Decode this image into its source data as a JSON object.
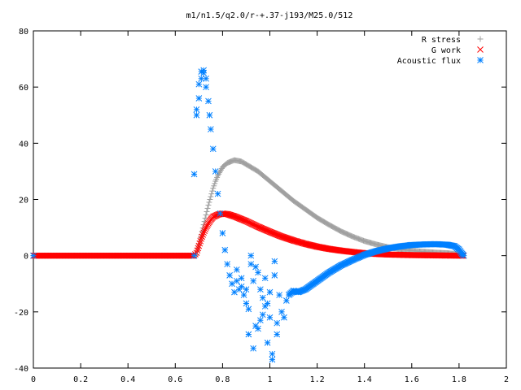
{
  "chart_data": {
    "type": "scatter",
    "title": "m1/n1.5/q2.0/r-+.37-j193/M25.0/512",
    "xlabel": "",
    "ylabel": "",
    "xlim": [
      0,
      2
    ],
    "ylim": [
      -40,
      80
    ],
    "x_ticks": [
      "0",
      "0.2",
      "0.4",
      "0.6",
      "0.8",
      "1",
      "1.2",
      "1.4",
      "1.6",
      "1.8",
      "2"
    ],
    "y_ticks": [
      "-40",
      "-20",
      "0",
      "20",
      "40",
      "60",
      "80"
    ],
    "grid": false,
    "legend_position": "top-right",
    "series": [
      {
        "name": "R stress",
        "marker": "+",
        "color": "#a0a0a0",
        "points": [
          [
            0.0,
            0
          ],
          [
            0.68,
            0
          ],
          [
            0.69,
            0.3
          ],
          [
            0.7,
            4
          ],
          [
            0.71,
            7.5
          ],
          [
            0.72,
            11
          ],
          [
            0.73,
            14.5
          ],
          [
            0.74,
            18
          ],
          [
            0.75,
            21
          ],
          [
            0.76,
            24
          ],
          [
            0.77,
            26.5
          ],
          [
            0.78,
            28.5
          ],
          [
            0.79,
            30
          ],
          [
            0.8,
            31.5
          ],
          [
            0.82,
            33
          ],
          [
            0.85,
            34
          ],
          [
            0.88,
            33.5
          ],
          [
            0.9,
            32.5
          ],
          [
            0.95,
            30
          ],
          [
            1.0,
            26.5
          ],
          [
            1.05,
            23
          ],
          [
            1.1,
            19.5
          ],
          [
            1.15,
            16.5
          ],
          [
            1.2,
            13.5
          ],
          [
            1.25,
            11
          ],
          [
            1.3,
            8.7
          ],
          [
            1.35,
            6.8
          ],
          [
            1.4,
            5.2
          ],
          [
            1.45,
            4
          ],
          [
            1.5,
            3
          ],
          [
            1.55,
            2.3
          ],
          [
            1.6,
            1.8
          ],
          [
            1.65,
            1.4
          ],
          [
            1.7,
            1.1
          ],
          [
            1.75,
            0.9
          ],
          [
            1.8,
            0.5
          ],
          [
            1.82,
            0
          ]
        ]
      },
      {
        "name": "G work",
        "marker": "x",
        "color": "#ff0000",
        "points": [
          [
            0.0,
            0
          ],
          [
            0.68,
            0
          ],
          [
            0.69,
            1
          ],
          [
            0.7,
            3.5
          ],
          [
            0.71,
            6
          ],
          [
            0.72,
            8.2
          ],
          [
            0.73,
            10
          ],
          [
            0.74,
            11.5
          ],
          [
            0.75,
            12.8
          ],
          [
            0.76,
            13.8
          ],
          [
            0.78,
            14.6
          ],
          [
            0.8,
            15
          ],
          [
            0.82,
            14.8
          ],
          [
            0.85,
            14
          ],
          [
            0.9,
            12.3
          ],
          [
            0.95,
            10.3
          ],
          [
            1.0,
            8.5
          ],
          [
            1.05,
            6.8
          ],
          [
            1.1,
            5.4
          ],
          [
            1.15,
            4.2
          ],
          [
            1.2,
            3.2
          ],
          [
            1.25,
            2.4
          ],
          [
            1.3,
            1.8
          ],
          [
            1.35,
            1.3
          ],
          [
            1.4,
            0.9
          ],
          [
            1.45,
            0.6
          ],
          [
            1.5,
            0.4
          ],
          [
            1.55,
            0.3
          ],
          [
            1.6,
            0.2
          ],
          [
            1.7,
            0.1
          ],
          [
            1.8,
            0
          ],
          [
            1.82,
            0
          ]
        ]
      },
      {
        "name": "Acoustic flux",
        "marker": "*",
        "color": "#0080ff",
        "points": [
          [
            0.0,
            0
          ],
          [
            0.68,
            0
          ],
          [
            0.68,
            29
          ],
          [
            0.69,
            52
          ],
          [
            0.69,
            50
          ],
          [
            0.7,
            56
          ],
          [
            0.7,
            61
          ],
          [
            0.71,
            63
          ],
          [
            0.71,
            65.5
          ],
          [
            0.72,
            66
          ],
          [
            0.72,
            65
          ],
          [
            0.73,
            63
          ],
          [
            0.73,
            60
          ],
          [
            0.74,
            55
          ],
          [
            0.745,
            50
          ],
          [
            0.75,
            45
          ],
          [
            0.76,
            38
          ],
          [
            0.77,
            30
          ],
          [
            0.78,
            22
          ],
          [
            0.79,
            15
          ],
          [
            0.8,
            8
          ],
          [
            0.81,
            2
          ],
          [
            0.82,
            -3
          ],
          [
            0.83,
            -7
          ],
          [
            0.84,
            -10
          ],
          [
            0.85,
            -13
          ],
          [
            0.86,
            -9
          ],
          [
            0.86,
            -5
          ],
          [
            0.87,
            -12
          ],
          [
            0.88,
            -8
          ],
          [
            0.88,
            -11
          ],
          [
            0.89,
            -14
          ],
          [
            0.9,
            -12
          ],
          [
            0.9,
            -17
          ],
          [
            0.91,
            -28
          ],
          [
            0.91,
            -19
          ],
          [
            0.92,
            0
          ],
          [
            0.92,
            -3
          ],
          [
            0.93,
            -33
          ],
          [
            0.93,
            -9
          ],
          [
            0.94,
            -25
          ],
          [
            0.94,
            -4
          ],
          [
            0.95,
            -26
          ],
          [
            0.95,
            -6
          ],
          [
            0.96,
            -23
          ],
          [
            0.96,
            -12
          ],
          [
            0.97,
            -21
          ],
          [
            0.97,
            -15
          ],
          [
            0.98,
            -8
          ],
          [
            0.98,
            -18
          ],
          [
            0.99,
            -31
          ],
          [
            0.99,
            -17
          ],
          [
            1.0,
            -22
          ],
          [
            1.0,
            -13
          ],
          [
            1.01,
            -35
          ],
          [
            1.01,
            -37
          ],
          [
            1.02,
            -2
          ],
          [
            1.02,
            -7
          ],
          [
            1.03,
            -28
          ],
          [
            1.03,
            -24
          ],
          [
            1.04,
            -14
          ],
          [
            1.05,
            -20
          ],
          [
            1.06,
            -22
          ],
          [
            1.07,
            -16
          ],
          [
            1.08,
            -14
          ],
          [
            1.1,
            -12.5
          ],
          [
            1.12,
            -13
          ],
          [
            1.15,
            -12
          ],
          [
            1.2,
            -9
          ],
          [
            1.25,
            -6
          ],
          [
            1.3,
            -3.5
          ],
          [
            1.35,
            -1.5
          ],
          [
            1.4,
            0.3
          ],
          [
            1.45,
            1.6
          ],
          [
            1.5,
            2.6
          ],
          [
            1.55,
            3.3
          ],
          [
            1.6,
            3.8
          ],
          [
            1.65,
            4
          ],
          [
            1.7,
            4.1
          ],
          [
            1.75,
            3.9
          ],
          [
            1.78,
            3.4
          ],
          [
            1.8,
            2.2
          ],
          [
            1.81,
            1
          ],
          [
            1.82,
            0
          ]
        ]
      }
    ]
  }
}
